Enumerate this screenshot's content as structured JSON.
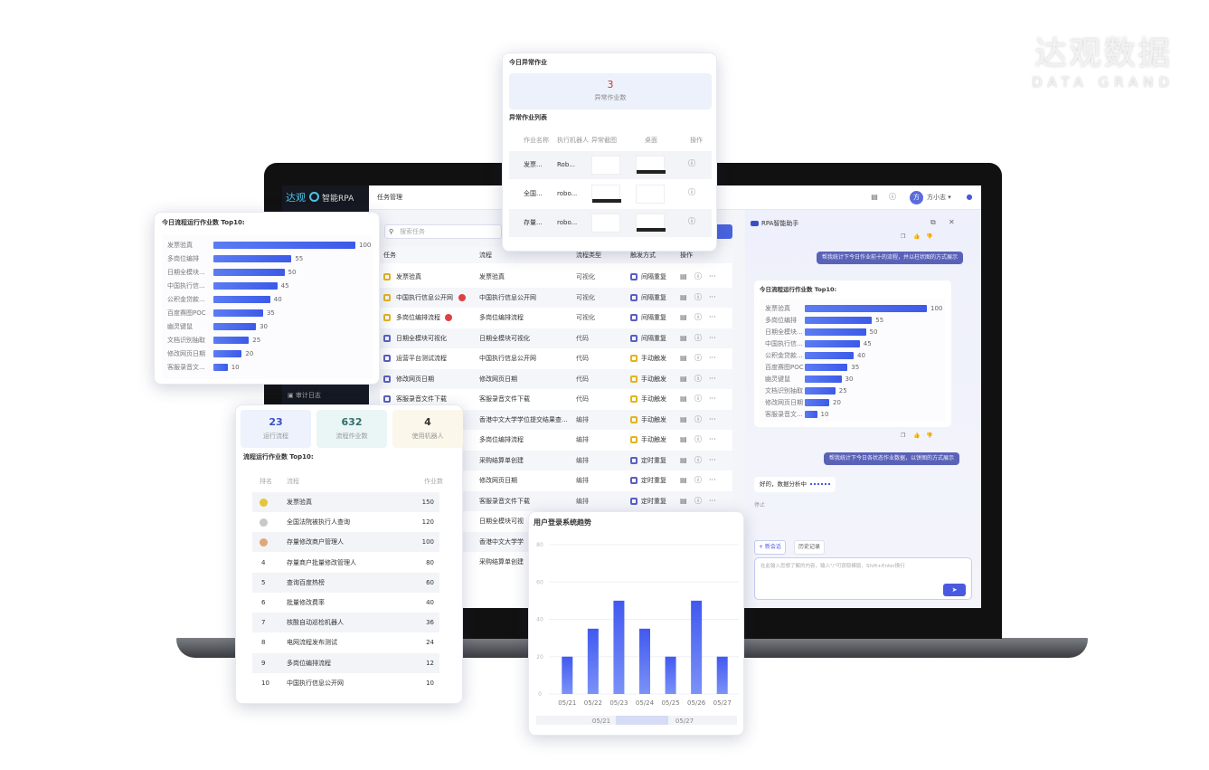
{
  "brand": {
    "logo_cn": "达观数据",
    "logo_en": "DATA GRAND"
  },
  "app": {
    "logo_text": "达观",
    "product": "智能RPA",
    "page_title": "任务管理",
    "sidebar_bottom_item": "审计日志",
    "search_placeholder": "搜索任务",
    "user_initial": "方",
    "user_name": "方小志"
  },
  "table": {
    "headers": [
      "任务",
      "流程",
      "流程类型",
      "触发方式",
      "操作"
    ],
    "rows": [
      {
        "task": "发票验真",
        "flow": "发票验真",
        "type": "可视化",
        "trigger": "间隔重复",
        "task_icon": "yellow",
        "badge": false
      },
      {
        "task": "中国执行信息公开网",
        "flow": "中国执行信息公开网",
        "type": "可视化",
        "trigger": "间隔重复",
        "task_icon": "yellow",
        "badge": true
      },
      {
        "task": "多岗位编排流程",
        "flow": "多岗位编排流程",
        "type": "可视化",
        "trigger": "间隔重复",
        "task_icon": "yellow",
        "badge": true
      },
      {
        "task": "日期全模块可视化",
        "flow": "日期全模块可视化",
        "type": "代码",
        "trigger": "间隔重复",
        "task_icon": "purple",
        "badge": false
      },
      {
        "task": "运营平台测试流程",
        "flow": "中国执行信息公开网",
        "type": "代码",
        "trigger": "手动触发",
        "task_icon": "purple",
        "badge": false
      },
      {
        "task": "修改网页日期",
        "flow": "修改网页日期",
        "type": "代码",
        "trigger": "手动触发",
        "task_icon": "purple",
        "badge": false
      },
      {
        "task": "客服录音文件下载",
        "flow": "客服录音文件下载",
        "type": "代码",
        "trigger": "手动触发",
        "task_icon": "purple",
        "badge": false
      },
      {
        "task": "",
        "flow": "香港中文大学学位提交结果查...",
        "type": "编排",
        "trigger": "手动触发",
        "task_icon": "",
        "badge": false
      },
      {
        "task": "",
        "flow": "多岗位编排流程",
        "type": "编排",
        "trigger": "手动触发",
        "task_icon": "",
        "badge": false
      },
      {
        "task": "",
        "flow": "采购结算单创建",
        "type": "编排",
        "trigger": "定时重复",
        "task_icon": "",
        "badge": false
      },
      {
        "task": "",
        "flow": "修改网页日期",
        "type": "编排",
        "trigger": "定时重复",
        "task_icon": "",
        "badge": false
      },
      {
        "task": "",
        "flow": "客服录音文件下载",
        "type": "编排",
        "trigger": "定时重复",
        "task_icon": "",
        "badge": false
      },
      {
        "task": "",
        "flow": "日期全模块可视",
        "type": "",
        "trigger": "",
        "task_icon": "",
        "badge": false
      },
      {
        "task": "",
        "flow": "香港中文大学学",
        "type": "",
        "trigger": "",
        "task_icon": "",
        "badge": false
      },
      {
        "task": "",
        "flow": "采购结算单创建",
        "type": "",
        "trigger": "",
        "task_icon": "",
        "badge": false
      }
    ]
  },
  "exceptions": {
    "title": "今日异常作业",
    "count": "3",
    "count_label": "异常作业数",
    "list_title": "异常作业列表",
    "headers": [
      "作业名称",
      "执行机器人",
      "异常截图",
      "桌面",
      "操作"
    ],
    "rows": [
      {
        "name": "发票...",
        "robot": "Rob..."
      },
      {
        "name": "全国...",
        "robot": "robo..."
      },
      {
        "name": "存量...",
        "robot": "robo..."
      }
    ]
  },
  "stats": {
    "cards": [
      {
        "value": "23",
        "label": "运行流程",
        "color": "#3b4fc4"
      },
      {
        "value": "632",
        "label": "流程作业数",
        "color": "#2f6f6a"
      },
      {
        "value": "4",
        "label": "使用机器人",
        "color": "#333333"
      }
    ],
    "title": "流程运行作业数 Top10:",
    "headers": [
      "排名",
      "流程",
      "作业数"
    ],
    "rows": [
      {
        "rank": "",
        "medal": "#e8c43a",
        "name": "发票验真",
        "count": "150"
      },
      {
        "rank": "",
        "medal": "#c8c8cc",
        "name": "全国法院被执行人查询",
        "count": "120"
      },
      {
        "rank": "",
        "medal": "#e0a878",
        "name": "存量修改商户管理人",
        "count": "100"
      },
      {
        "rank": "4",
        "name": "存量商户批量修改管理人",
        "count": "80"
      },
      {
        "rank": "5",
        "name": "查询百度热榜",
        "count": "60"
      },
      {
        "rank": "6",
        "name": "批量修改费率",
        "count": "40"
      },
      {
        "rank": "7",
        "name": "核酸自动巡检机器人",
        "count": "36"
      },
      {
        "rank": "8",
        "name": "电网流程发布测试",
        "count": "24"
      },
      {
        "rank": "9",
        "name": "多岗位编排流程",
        "count": "12"
      },
      {
        "rank": "10",
        "name": "中国执行信息公开网",
        "count": "10"
      }
    ]
  },
  "assistant": {
    "title": "RPA智能助手",
    "user_msg_1": "帮我统计下今日作业前十的流程，并以柱状图的方式展示",
    "user_msg_2": "帮我统计下今日各状态作业数据，以饼图的方式展示",
    "reply": "好的，数据分析中",
    "stop": "停止",
    "new_session": "+ 新会话",
    "history": "历史记录",
    "input_placeholder": "在此输入您想了解的内容，输入\"/\"可获取模版，Shift+Enter换行"
  },
  "chart_data": [
    {
      "type": "bar",
      "orientation": "horizontal",
      "title": "今日流程运行作业数 Top10:",
      "categories": [
        "发票验真",
        "多岗位编排",
        "日期全模块...",
        "中国执行信...",
        "公积金贷款...",
        "百度赛图POC",
        "幽灵键鼠",
        "文档识别抽取",
        "修改网页日期",
        "客服录音文..."
      ],
      "values": [
        100,
        55,
        50,
        45,
        40,
        35,
        30,
        25,
        20,
        10
      ],
      "grid": false
    },
    {
      "type": "bar",
      "orientation": "horizontal",
      "title": "今日流程运行作业数 Top10:",
      "categories": [
        "发票验真",
        "多岗位编排",
        "日期全模块...",
        "中国执行信...",
        "公积金贷款...",
        "百度赛图POC",
        "幽灵键鼠",
        "文档识别抽取",
        "修改网页日期",
        "客服录音文..."
      ],
      "values": [
        100,
        55,
        50,
        45,
        40,
        35,
        30,
        25,
        20,
        10
      ],
      "grid": false
    },
    {
      "type": "bar",
      "title": "用户登录系统趋势",
      "categories": [
        "05/21",
        "05/22",
        "05/23",
        "05/24",
        "05/25",
        "05/26",
        "05/27"
      ],
      "values": [
        20,
        35,
        50,
        35,
        20,
        50,
        20
      ],
      "ylim": [
        0,
        80
      ],
      "yticks": [
        0,
        20,
        40,
        60,
        80
      ],
      "grid": true,
      "color": "#4a63f0",
      "zoom_labels": [
        "05/21",
        "05/27"
      ]
    }
  ]
}
